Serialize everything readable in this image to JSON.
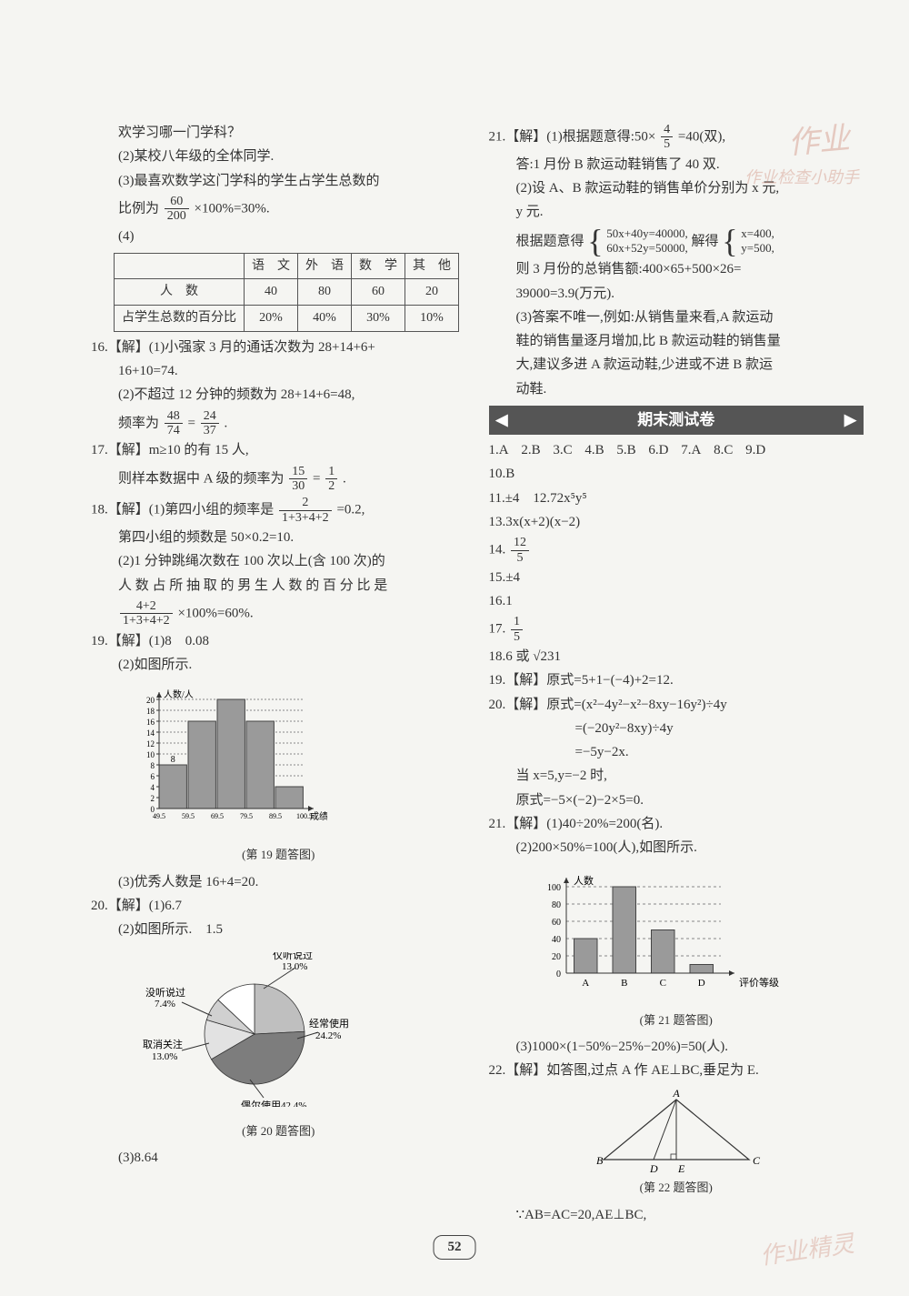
{
  "page_number": "52",
  "watermarks": {
    "w1": "作业",
    "w2": "作业检查小助手",
    "w3": "作业精灵"
  },
  "left": {
    "q15_1": "欢学习哪一门学科？",
    "q15_2": "(2)某校八年级的全体同学.",
    "q15_3": "(3)最喜欢数学这门学科的学生占学生总数的",
    "q15_3b": "比例为",
    "q15_frac_num": "60",
    "q15_frac_den": "200",
    "q15_3c": "×100%=30%.",
    "q15_4": "(4)",
    "table": {
      "cols": [
        "语　文",
        "外　语",
        "数　学",
        "其　他"
      ],
      "row1_label": "人　数",
      "row1": [
        "40",
        "80",
        "60",
        "20"
      ],
      "row2_label": "占学生总数的百分比",
      "row2": [
        "20%",
        "40%",
        "30%",
        "10%"
      ]
    },
    "q16_a": "16.【解】(1)小强家 3 月的通话次数为 28+14+6+",
    "q16_b": "16+10=74.",
    "q16_c": "(2)不超过 12 分钟的频数为 28+14+6=48,",
    "q16_d_pre": "频率为",
    "q16_frac1_num": "48",
    "q16_frac1_den": "74",
    "q16_eq": "=",
    "q16_frac2_num": "24",
    "q16_frac2_den": "37",
    "q16_dot": ".",
    "q17_a": "17.【解】m≥10 的有 15 人,",
    "q17_b": "则样本数据中 A 级的频率为",
    "q17_frac_num": "15",
    "q17_frac_den": "30",
    "q17_eq": "=",
    "q17_frac2_num": "1",
    "q17_frac2_den": "2",
    "q17_dot": ".",
    "q18_a": "18.【解】(1)第四小组的频率是",
    "q18_frac_num": "2",
    "q18_frac_den": "1+3+4+2",
    "q18_a2": "=0.2,",
    "q18_b": "第四小组的频数是 50×0.2=10.",
    "q18_c": "(2)1 分钟跳绳次数在 100 次以上(含 100 次)的",
    "q18_d": "人 数 占 所 抽 取 的 男 生 人 数 的 百 分 比 是",
    "q18_frac2_num": "4+2",
    "q18_frac2_den": "1+3+4+2",
    "q18_e": "×100%=60%.",
    "q19_a": "19.【解】(1)8　0.08",
    "q19_b": "(2)如图所示.",
    "q19_caption": "(第 19 题答图)",
    "q19_c": "(3)优秀人数是 16+4=20.",
    "q20_a": "20.【解】(1)6.7",
    "q20_b": "(2)如图所示.　1.5",
    "q20_caption": "(第 20 题答图)",
    "q20_c": "(3)8.64",
    "barchart19": {
      "type": "bar",
      "x_labels": [
        "49.5",
        "59.5",
        "69.5",
        "79.5",
        "89.5",
        "100.5"
      ],
      "y_ticks": [
        0,
        2,
        4,
        6,
        8,
        10,
        12,
        14,
        16,
        18,
        20
      ],
      "values": [
        8,
        16,
        20,
        16,
        4
      ],
      "bar_color": "#9a9a9a",
      "annotation_value": "8",
      "x_axis_label": "成绩(分)",
      "y_axis_label": "人数/人",
      "grid_color": "#888"
    },
    "pie20": {
      "type": "pie",
      "slices": [
        {
          "label": "经常使用",
          "pct": 24.2,
          "color": "#bfbfbf"
        },
        {
          "label": "偶尔使用",
          "pct": 42.4,
          "color": "#7d7d7d",
          "underline": true
        },
        {
          "label": "取消关注",
          "pct": 13.0,
          "color": "#e2e2e2"
        },
        {
          "label": "没听说过",
          "pct": 7.4,
          "color": "#d0d0d0"
        },
        {
          "label": "仅听说过",
          "pct": 13.0,
          "color": "#ffffff"
        }
      ],
      "labels": {
        "jin": "仅听说过\n13.0%",
        "mei": "没听说过\n7.4%",
        "qx": "取消关注\n13.0%",
        "ouer": "偶尔使用42.4%",
        "jc": "经常使用\n24.2%"
      }
    }
  },
  "right": {
    "q21_a": "21.【解】(1)根据题意得:50×",
    "q21_frac_num": "4",
    "q21_frac_den": "5",
    "q21_a2": "=40(双),",
    "q21_b": "答:1 月份 B 款运动鞋销售了 40 双.",
    "q21_c": "(2)设 A、B 款运动鞋的销售单价分别为 x 元,",
    "q21_c2": "y 元.",
    "q21_d": "根据题意得",
    "q21_sys1": "50x+40y=40000,",
    "q21_sys2": "60x+52y=50000,",
    "q21_d2": "解得",
    "q21_sys3": "x=400,",
    "q21_sys4": "y=500,",
    "q21_e": "则 3 月份的总销售额:400×65+500×26=",
    "q21_e2": "39000=3.9(万元).",
    "q21_f": "(3)答案不唯一,例如:从销售量来看,A 款运动",
    "q21_f2": "鞋的销售量逐月增加,比 B 款运动鞋的销售量",
    "q21_f3": "大,建议多进 A 款运动鞋,少进或不进 B 款运",
    "q21_f4": "动鞋.",
    "header": "期末测试卷",
    "mc": [
      "1.A",
      "2.B",
      "3.C",
      "4.B",
      "5.B",
      "6.D",
      "7.A",
      "8.C",
      "9.D"
    ],
    "a10": "10.B",
    "a11": "11.±4　12.72x⁵y⁵",
    "a13": "13.3x(x+2)(x−2)",
    "a14_pre": "14.",
    "a14_num": "12",
    "a14_den": "5",
    "a15": "15.±4",
    "a16": "16.1",
    "a17_pre": "17.",
    "a17_num": "1",
    "a17_den": "5",
    "a18": "18.6 或 √231",
    "a19": "19.【解】原式=5+1−(−4)+2=12.",
    "a20_a": "20.【解】原式=(x²−4y²−x²−8xy−16y²)÷4y",
    "a20_b": "=(−20y²−8xy)÷4y",
    "a20_c": "=−5y−2x.",
    "a20_d": "当 x=5,y=−2 时,",
    "a20_e": "原式=−5×(−2)−2×5=0.",
    "a21_a": "21.【解】(1)40÷20%=200(名).",
    "a21_b": "(2)200×50%=100(人),如图所示.",
    "a21_caption": "(第 21 题答图)",
    "a21_c": "(3)1000×(1−50%−25%−20%)=50(人).",
    "a22_a": "22.【解】如答图,过点 A 作 AE⊥BC,垂足为 E.",
    "a22_caption": "(第 22 题答图)",
    "a22_b": "∵AB=AC=20,AE⊥BC,",
    "barchart21": {
      "type": "bar",
      "x_labels": [
        "A",
        "B",
        "C",
        "D"
      ],
      "y_ticks": [
        0,
        20,
        40,
        60,
        80,
        100
      ],
      "values": [
        40,
        100,
        50,
        10
      ],
      "bar_color": "#9a9a9a",
      "x_axis_label": "评价等级",
      "y_axis_label": "人数",
      "grid_color": "#888"
    },
    "triangle22": {
      "type": "diagram",
      "points": {
        "A": "A",
        "B": "B",
        "C": "C",
        "D": "D",
        "E": "E"
      }
    }
  }
}
